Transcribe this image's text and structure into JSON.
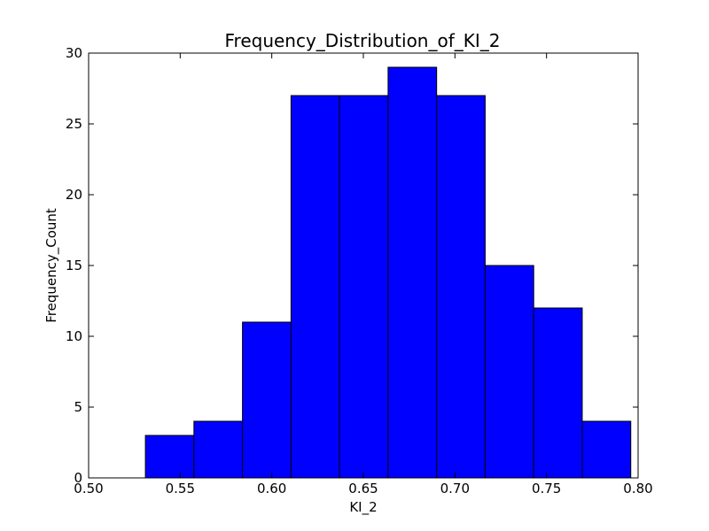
{
  "chart_data": {
    "type": "bar",
    "title": "Frequency_Distribution_of_KI_2",
    "xlabel": "KI_2",
    "ylabel": "Frequency_Count",
    "xlim": [
      0.5,
      0.8
    ],
    "ylim": [
      0,
      30
    ],
    "x_ticks": [
      0.5,
      0.55,
      0.6,
      0.65,
      0.7,
      0.75,
      0.8
    ],
    "x_tick_labels": [
      "0.50",
      "0.55",
      "0.60",
      "0.65",
      "0.70",
      "0.75",
      "0.80"
    ],
    "y_ticks": [
      0,
      5,
      10,
      15,
      20,
      25,
      30
    ],
    "y_tick_labels": [
      "0",
      "5",
      "10",
      "15",
      "20",
      "25",
      "30"
    ],
    "bin_edges": [
      0.531,
      0.5575,
      0.584,
      0.6105,
      0.637,
      0.6635,
      0.69,
      0.7165,
      0.743,
      0.7695,
      0.796
    ],
    "values": [
      3,
      4,
      11,
      27,
      27,
      29,
      27,
      15,
      12,
      4
    ],
    "bar_color": "#0000ff",
    "grid": false,
    "legend": "none"
  }
}
